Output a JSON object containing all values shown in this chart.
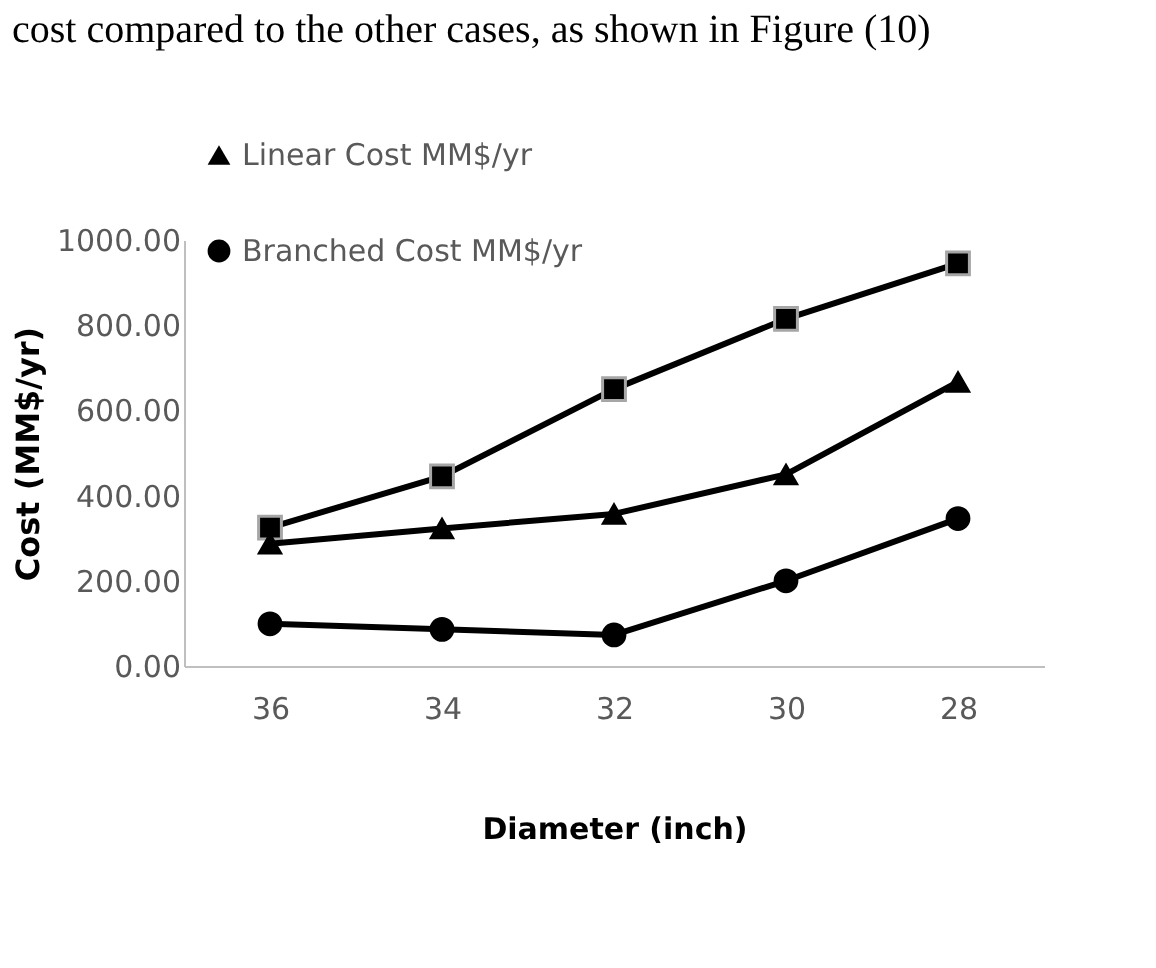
{
  "chart_data": {
    "type": "line",
    "annotations": [
      "cost compared to the other cases, as shown in Figure (10)"
    ],
    "xlabel": "Diameter (inch)",
    "ylabel": "Cost (MM$/yr)",
    "categories": [
      "36",
      "34",
      "32",
      "30",
      "28"
    ],
    "series": [
      {
        "color": "#000000",
        "marker": "square",
        "values": [
          325,
          445,
          650,
          815,
          945
        ]
      },
      {
        "name": "Linear Cost MM$/yr",
        "color": "#000000",
        "marker": "triangle",
        "values": [
          287,
          323,
          357,
          450,
          667
        ]
      },
      {
        "name": "Branched Cost MM$/yr",
        "color": "#000000",
        "marker": "circle",
        "values": [
          99,
          86,
          73,
          200,
          346
        ]
      }
    ],
    "ylim": [
      0,
      1000
    ],
    "yticks": [
      {
        "value": 0,
        "label": "0.00"
      },
      {
        "value": 200,
        "label": "200.00"
      },
      {
        "value": 400,
        "label": "400.00"
      },
      {
        "value": 600,
        "label": "600.00"
      },
      {
        "value": 800,
        "label": "800.00"
      },
      {
        "value": 1000,
        "label": "1000.00"
      }
    ],
    "grid": false,
    "legend": "top left",
    "line_style": "solid"
  }
}
